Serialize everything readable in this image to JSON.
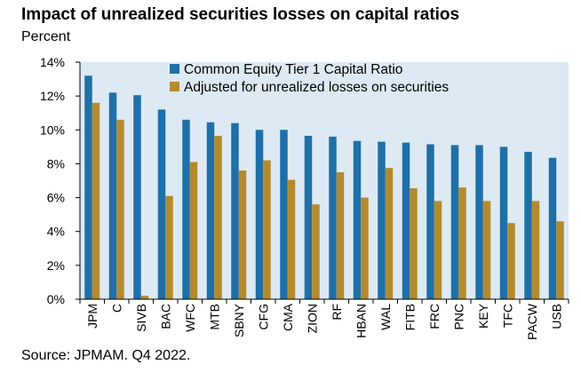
{
  "title": "Impact of unrealized securities losses on capital ratios",
  "subtitle": "Percent",
  "source": "Source: JPMAM. Q4 2022.",
  "colors": {
    "series1": "#1f70a8",
    "series2": "#b38b2e",
    "plot_bg": "#ddeaf3"
  },
  "chart_data": {
    "type": "bar",
    "title": "Impact of unrealized securities losses on capital ratios",
    "ylabel": "Percent",
    "ylim": [
      0,
      14
    ],
    "yticks": [
      0,
      2,
      4,
      6,
      8,
      10,
      12,
      14
    ],
    "ytick_labels": [
      "0%",
      "2%",
      "4%",
      "6%",
      "8%",
      "10%",
      "12%",
      "14%"
    ],
    "grid": false,
    "legend_position": "top",
    "categories": [
      "JPM",
      "C",
      "SIVB",
      "BAC",
      "WFC",
      "MTB",
      "SBNY",
      "CFG",
      "CMA",
      "ZION",
      "RF",
      "HBAN",
      "WAL",
      "FITB",
      "FRC",
      "PNC",
      "KEY",
      "TFC",
      "PACW",
      "USB"
    ],
    "series": [
      {
        "name": "Common Equity Tier 1 Capital Ratio",
        "values": [
          13.2,
          12.2,
          12.05,
          11.2,
          10.6,
          10.45,
          10.4,
          10.0,
          10.0,
          9.65,
          9.6,
          9.35,
          9.3,
          9.25,
          9.15,
          9.1,
          9.1,
          9.0,
          8.7,
          8.35
        ]
      },
      {
        "name": "Adjusted for unrealized losses on securities",
        "values": [
          11.6,
          10.6,
          0.2,
          6.1,
          8.1,
          9.65,
          7.6,
          8.2,
          7.05,
          5.6,
          7.5,
          6.0,
          7.75,
          6.55,
          5.8,
          6.6,
          5.8,
          4.5,
          5.8,
          4.6
        ]
      }
    ]
  }
}
